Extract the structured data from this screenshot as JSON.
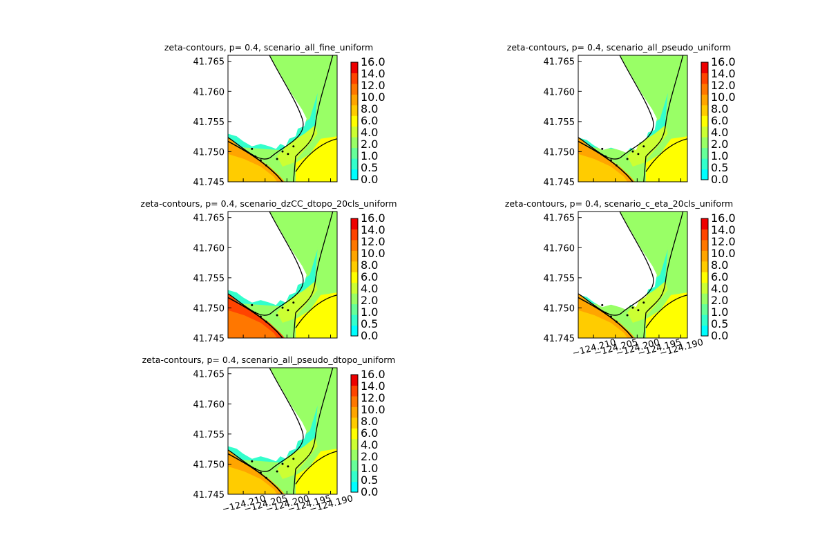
{
  "chart_data": {
    "type": "heatmap",
    "plot_kind": "filled contour map",
    "shared": {
      "x_ticks": [
        "−124.210",
        "−124.205",
        "−124.200",
        "−124.195",
        "−124.190"
      ],
      "y_ticks": [
        "41.765",
        "41.760",
        "41.755",
        "41.750",
        "41.745"
      ],
      "xlim": [
        -124.2135,
        -124.1885
      ],
      "ylim": [
        41.745,
        41.766
      ],
      "colorbar_levels": [
        "0.0",
        "0.5",
        "1.0",
        "2.0",
        "4.0",
        "6.0",
        "8.0",
        "10.0",
        "12.0",
        "14.0",
        "16.0"
      ],
      "colorbar_colors": [
        "#00ffff",
        "#33ffcc",
        "#66ff99",
        "#99ff66",
        "#ccff33",
        "#ffff00",
        "#ffcc00",
        "#ffa500",
        "#ff7700",
        "#ff4400",
        "#ee0000"
      ]
    },
    "panels": [
      {
        "title": "zeta-contours, p= 0.4, scenario_all_fine_uniform",
        "south_max_level": 7,
        "white_extent": 0.0,
        "show_xticks": false
      },
      {
        "title": "zeta-contours, p= 0.4, scenario_all_pseudo_uniform",
        "south_max_level": 7,
        "white_extent": 0.1,
        "show_xticks": false
      },
      {
        "title": "zeta-contours, p= 0.4, scenario_dzCC_dtopo_20cls_uniform",
        "south_max_level": 9,
        "white_extent": 0.0,
        "show_xticks": false
      },
      {
        "title": "zeta-contours, p= 0.4, scenario_c_eta_20cls_uniform",
        "south_max_level": 7,
        "white_extent": 0.12,
        "show_xticks": true
      },
      {
        "title": "zeta-contours, p= 0.4, scenario_all_pseudo_dtopo_uniform",
        "south_max_level": 7,
        "white_extent": 0.0,
        "show_xticks": true
      }
    ]
  }
}
